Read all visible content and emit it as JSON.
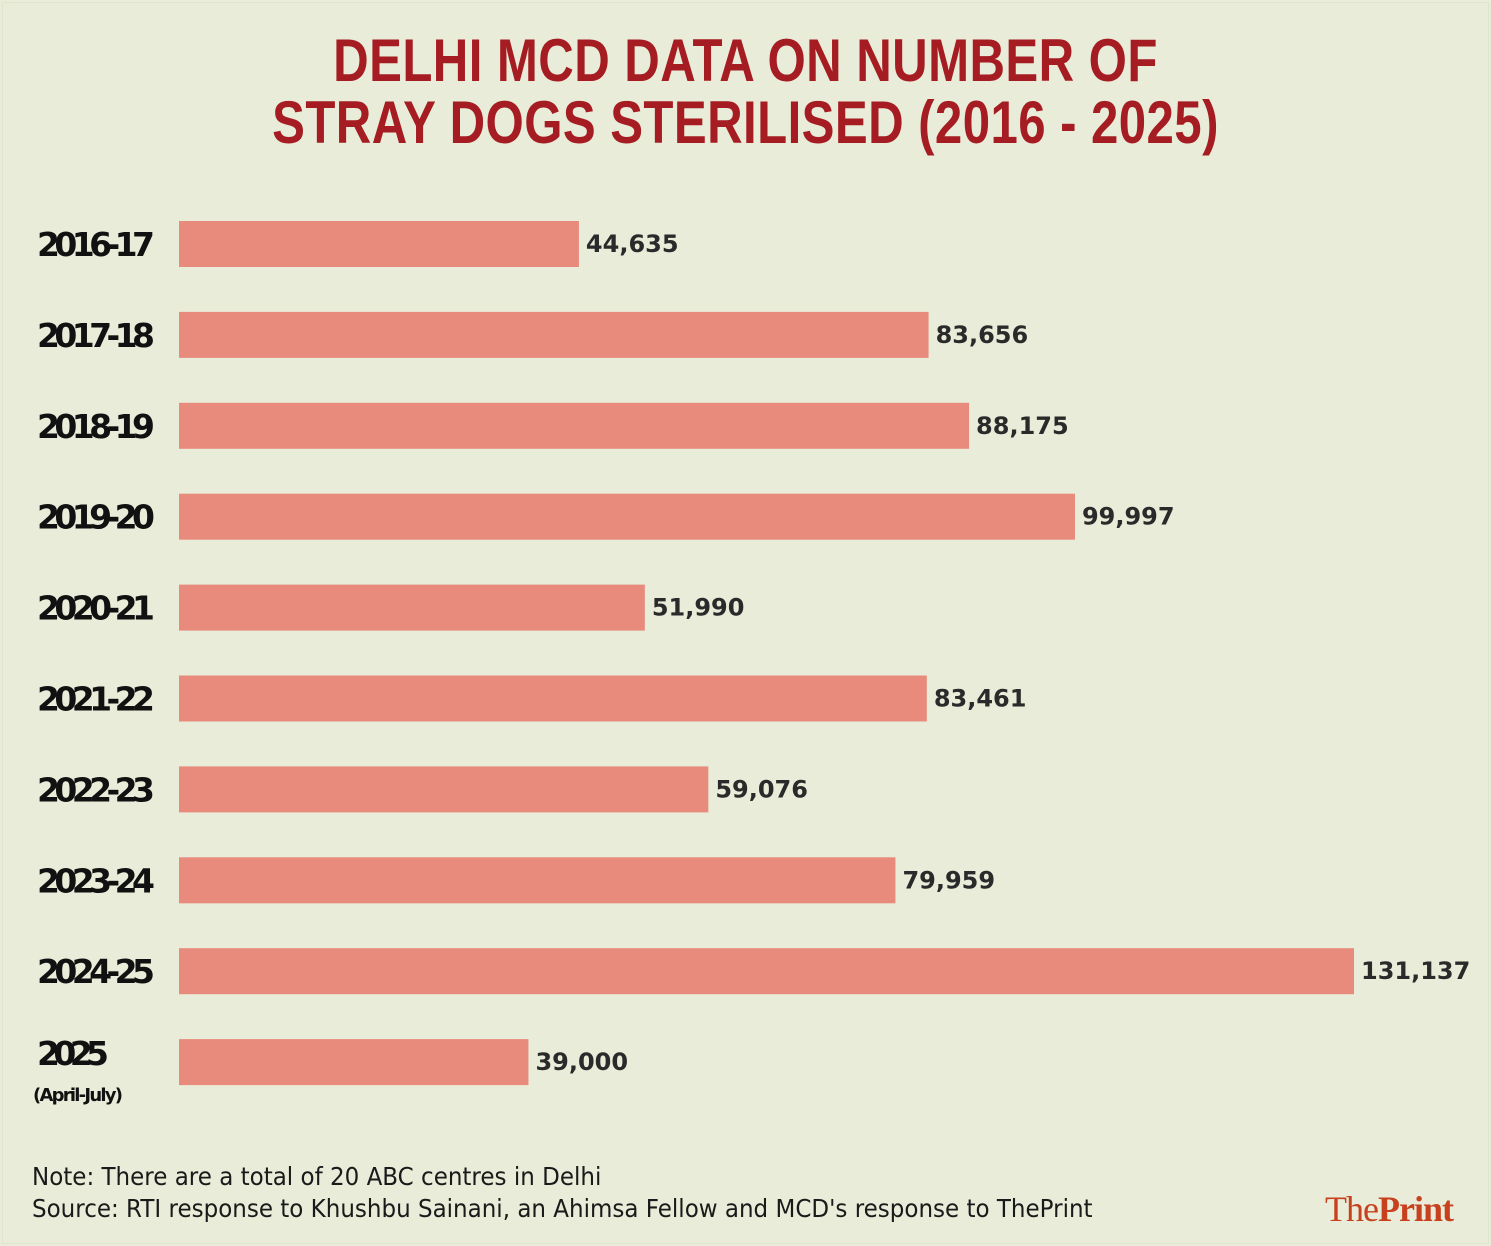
{
  "title_line1": "DELHI MCD DATA ON NUMBER OF",
  "title_line2": "STRAY DOGS STERILISED (2016 - 2025)",
  "colors": {
    "background": "#e8ecd8",
    "bar": "#e88b7d",
    "title": "#a51c22",
    "logo": "#c8411f"
  },
  "chart_data": {
    "type": "bar",
    "orientation": "horizontal",
    "title": "DELHI MCD DATA ON NUMBER OF STRAY DOGS STERILISED (2016 - 2025)",
    "categories": [
      "2016-17",
      "2017-18",
      "2018-19",
      "2019-20",
      "2020-21",
      "2021-22",
      "2022-23",
      "2023-24",
      "2024-25",
      "2025"
    ],
    "category_sublabels": [
      "",
      "",
      "",
      "",
      "",
      "",
      "",
      "",
      "",
      "(April-July)"
    ],
    "values": [
      44635,
      83656,
      88175,
      99997,
      51990,
      83461,
      59076,
      79959,
      131137,
      39000
    ],
    "data_labels": [
      "44,635",
      "83,656",
      "88,175",
      "99,997",
      "51,990",
      "83,461",
      "59,076",
      "79,959",
      "131,137",
      "39,000"
    ],
    "xlim": [
      0,
      131137
    ],
    "grid": false,
    "legend": "none"
  },
  "note": "Note: There are a total of 20 ABC centres in Delhi",
  "source": "Source: RTI response to Khushbu Sainani, an Ahimsa Fellow and MCD's response to ThePrint",
  "logo": {
    "part1": "The",
    "part2": "Print"
  }
}
